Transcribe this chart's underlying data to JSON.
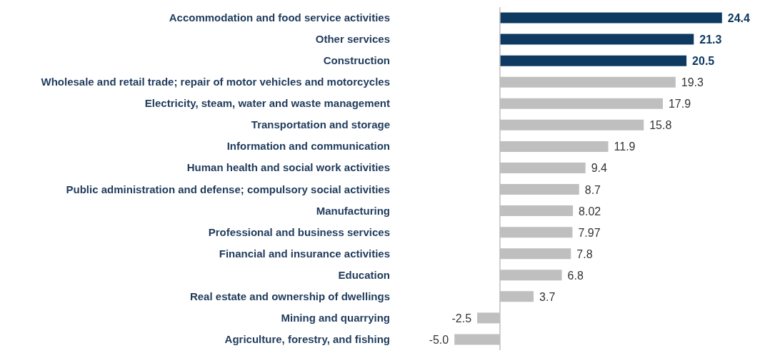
{
  "chart_data": {
    "type": "bar",
    "orientation": "horizontal",
    "value_labels": [
      "24.4",
      "21.3",
      "20.5",
      "19.3",
      "17.9",
      "15.8",
      "11.9",
      "9.4",
      "8.7",
      "8.02",
      "7.97",
      "7.8",
      "6.8",
      "3.7",
      "-2.5",
      "-5.0"
    ],
    "categories": [
      "Accommodation and food service activities",
      "Other services",
      "Construction",
      "Wholesale and retail trade; repair of motor vehicles and motorcycles",
      "Electricity, steam, water and waste management",
      "Transportation and storage",
      "Information and communication",
      "Human health and social work activities",
      "Public administration and defense; compulsory social activities",
      "Manufacturing",
      "Professional and business services",
      "Financial and insurance activities",
      "Education",
      "Real estate and ownership of dwellings",
      "Mining and quarrying",
      "Agriculture, forestry, and fishing"
    ],
    "values": [
      24.4,
      21.3,
      20.5,
      19.3,
      17.9,
      15.8,
      11.9,
      9.4,
      8.7,
      8.02,
      7.97,
      7.8,
      6.8,
      3.7,
      -2.5,
      -5.0
    ],
    "colors": [
      "#0e3a62",
      "#0e3a62",
      "#0e3a62",
      "#bfbfbf",
      "#bfbfbf",
      "#bfbfbf",
      "#bfbfbf",
      "#bfbfbf",
      "#bfbfbf",
      "#bfbfbf",
      "#bfbfbf",
      "#bfbfbf",
      "#bfbfbf",
      "#bfbfbf",
      "#bfbfbf",
      "#bfbfbf"
    ]
  }
}
